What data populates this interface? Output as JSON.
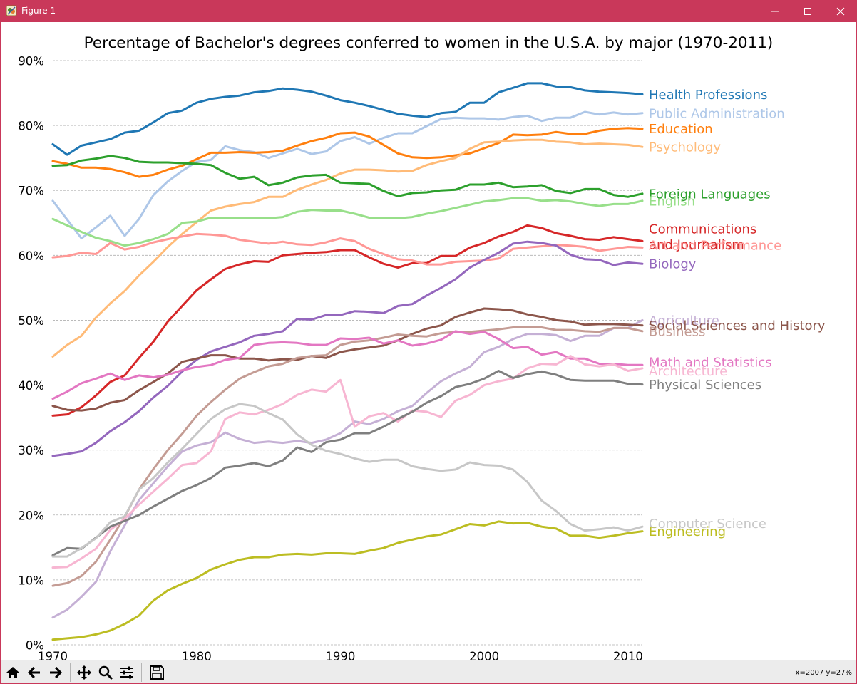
{
  "window": {
    "title": "Figure 1",
    "icons": [
      "app-icon",
      "minimize-icon",
      "maximize-icon",
      "close-icon"
    ],
    "title_bar_color": "#c9385a"
  },
  "toolbar": {
    "buttons": [
      "home-icon",
      "back-icon",
      "forward-icon",
      "pan-icon",
      "zoom-icon",
      "subplots-icon",
      "save-icon"
    ],
    "coords": "x=2007 y=27%"
  },
  "chart_data": {
    "type": "line",
    "title": "Percentage of Bachelor's degrees conferred to women in the U.S.A. by major (1970-2011)",
    "xlabel": "",
    "ylabel": "",
    "xlim": [
      1970,
      2011
    ],
    "ylim": [
      0,
      90
    ],
    "xticks": [
      "1970",
      "1980",
      "1990",
      "2000",
      "2010"
    ],
    "yticks": [
      "0%",
      "10%",
      "20%",
      "30%",
      "40%",
      "50%",
      "60%",
      "70%",
      "80%",
      "90%"
    ],
    "grid": "horizontal dashed",
    "legend": "direct labels at right end",
    "x": [
      1970,
      1971,
      1972,
      1973,
      1974,
      1975,
      1976,
      1977,
      1978,
      1979,
      1980,
      1981,
      1982,
      1983,
      1984,
      1985,
      1986,
      1987,
      1988,
      1989,
      1990,
      1991,
      1992,
      1993,
      1994,
      1995,
      1996,
      1997,
      1998,
      1999,
      2000,
      2001,
      2002,
      2003,
      2004,
      2005,
      2006,
      2007,
      2008,
      2009,
      2010,
      2011
    ],
    "series": [
      {
        "name": "Health Professions",
        "color": "#1f77b4",
        "values": [
          77.1,
          75.5,
          76.9,
          77.4,
          77.9,
          78.9,
          79.2,
          80.5,
          81.9,
          82.3,
          83.5,
          84.1,
          84.4,
          84.6,
          85.1,
          85.3,
          85.7,
          85.5,
          85.2,
          84.6,
          83.9,
          83.5,
          83.0,
          82.4,
          81.8,
          81.5,
          81.3,
          81.9,
          82.1,
          83.5,
          83.5,
          85.1,
          85.8,
          86.5,
          86.5,
          86.0,
          85.9,
          85.4,
          85.2,
          85.1,
          85.0,
          84.8
        ],
        "label_offset": 0
      },
      {
        "name": "Public Administration",
        "color": "#aec7e8",
        "values": [
          68.4,
          65.5,
          62.6,
          64.3,
          66.1,
          63.0,
          65.6,
          69.3,
          71.4,
          73.0,
          74.4,
          74.7,
          76.8,
          76.2,
          75.9,
          75.0,
          75.7,
          76.4,
          75.6,
          76.0,
          77.6,
          78.2,
          77.2,
          78.1,
          78.8,
          78.8,
          79.9,
          81.0,
          81.2,
          81.1,
          81.1,
          80.9,
          81.3,
          81.5,
          80.7,
          81.2,
          81.2,
          82.1,
          81.7,
          82.0,
          81.7,
          81.9
        ],
        "label_offset": 0
      },
      {
        "name": "Education",
        "color": "#ff7f0e",
        "values": [
          74.5,
          74.1,
          73.5,
          73.5,
          73.3,
          72.8,
          72.1,
          72.4,
          73.2,
          73.8,
          74.8,
          75.8,
          75.8,
          75.9,
          75.8,
          75.9,
          76.1,
          76.9,
          77.6,
          78.1,
          78.8,
          78.9,
          78.3,
          77.0,
          75.7,
          75.1,
          75.0,
          75.1,
          75.4,
          75.7,
          76.5,
          77.3,
          78.6,
          78.5,
          78.6,
          79.0,
          78.7,
          78.7,
          79.2,
          79.5,
          79.6,
          79.5
        ],
        "label_offset": 0
      },
      {
        "name": "Psychology",
        "color": "#ffbb78",
        "values": [
          44.4,
          46.2,
          47.6,
          50.4,
          52.6,
          54.5,
          56.9,
          59.0,
          61.3,
          63.3,
          65.1,
          66.9,
          67.5,
          67.9,
          68.2,
          69.0,
          69.0,
          70.1,
          70.9,
          71.6,
          72.6,
          73.2,
          73.2,
          73.1,
          72.9,
          73.0,
          73.9,
          74.5,
          75.0,
          76.4,
          77.4,
          77.5,
          77.7,
          77.8,
          77.8,
          77.5,
          77.4,
          77.1,
          77.2,
          77.1,
          77.0,
          76.7
        ],
        "label_offset": 0
      },
      {
        "name": "Foreign Languages",
        "color": "#2ca02c",
        "values": [
          73.8,
          73.9,
          74.6,
          74.9,
          75.3,
          75.0,
          74.4,
          74.3,
          74.3,
          74.2,
          74.1,
          73.9,
          72.7,
          71.8,
          72.1,
          70.8,
          71.2,
          72.0,
          72.3,
          72.4,
          71.2,
          71.1,
          71.0,
          69.9,
          69.1,
          69.6,
          69.7,
          70.0,
          70.1,
          70.9,
          70.9,
          71.2,
          70.5,
          70.6,
          70.8,
          69.9,
          69.6,
          70.2,
          70.2,
          69.3,
          69.0,
          69.5
        ],
        "label_offset": 0
      },
      {
        "name": "English",
        "color": "#98df8a",
        "values": [
          65.6,
          64.6,
          63.6,
          62.7,
          62.2,
          61.5,
          61.9,
          62.5,
          63.3,
          65.0,
          65.2,
          65.8,
          65.8,
          65.8,
          65.7,
          65.7,
          65.9,
          66.7,
          67.0,
          66.9,
          66.9,
          66.4,
          65.8,
          65.8,
          65.7,
          65.9,
          66.4,
          66.8,
          67.3,
          67.8,
          68.3,
          68.5,
          68.8,
          68.8,
          68.4,
          68.5,
          68.3,
          67.9,
          67.6,
          67.9,
          67.9,
          68.4
        ],
        "label_offset": 0
      },
      {
        "name": "Communications\nand Journalism",
        "color": "#d62728",
        "values": [
          35.3,
          35.5,
          36.6,
          38.4,
          40.5,
          41.5,
          44.2,
          46.7,
          49.8,
          52.2,
          54.6,
          56.3,
          57.9,
          58.6,
          59.1,
          59.0,
          60.0,
          60.2,
          60.4,
          60.5,
          60.8,
          60.8,
          59.7,
          58.7,
          58.1,
          58.8,
          58.8,
          59.9,
          59.9,
          61.2,
          61.9,
          62.9,
          63.6,
          64.6,
          64.2,
          63.4,
          63.0,
          62.5,
          62.4,
          62.8,
          62.5,
          62.2
        ],
        "label_offset": -0.5
      },
      {
        "name": "Art and Performance",
        "color": "#ff9896",
        "values": [
          59.7,
          59.9,
          60.4,
          60.2,
          61.9,
          60.9,
          61.3,
          62.0,
          62.5,
          62.9,
          63.3,
          63.2,
          63.0,
          62.4,
          62.1,
          61.8,
          62.1,
          61.7,
          61.6,
          62.0,
          62.6,
          62.2,
          61.0,
          60.2,
          59.4,
          59.2,
          58.6,
          58.6,
          59.0,
          59.1,
          59.2,
          59.5,
          61.0,
          61.2,
          61.4,
          61.6,
          61.5,
          61.3,
          60.7,
          61.0,
          61.3,
          61.2
        ],
        "label_offset": 0.4
      },
      {
        "name": "Biology",
        "color": "#9467bd",
        "values": [
          29.1,
          29.4,
          29.8,
          31.1,
          32.9,
          34.3,
          36.0,
          38.1,
          39.9,
          42.1,
          43.9,
          45.2,
          45.9,
          46.6,
          47.6,
          47.9,
          48.3,
          50.2,
          50.1,
          50.8,
          50.8,
          51.4,
          51.3,
          51.1,
          52.2,
          52.5,
          53.8,
          55.0,
          56.3,
          58.1,
          59.3,
          60.4,
          61.8,
          62.1,
          61.9,
          61.5,
          60.1,
          59.4,
          59.3,
          58.5,
          58.9,
          58.7
        ],
        "label_offset": 0
      },
      {
        "name": "Agriculture",
        "color": "#c5b0d5",
        "values": [
          4.2,
          5.4,
          7.4,
          9.7,
          14.4,
          18.4,
          22.3,
          24.9,
          27.5,
          29.8,
          30.7,
          31.2,
          32.7,
          31.7,
          31.1,
          31.3,
          31.1,
          31.4,
          31.1,
          31.6,
          32.6,
          34.4,
          34.0,
          34.8,
          36.0,
          36.8,
          38.8,
          40.6,
          41.8,
          42.8,
          45.1,
          45.9,
          47.1,
          47.9,
          47.9,
          47.7,
          46.8,
          47.6,
          47.6,
          48.8,
          48.8,
          50.0
        ],
        "label_offset": 0
      },
      {
        "name": "Social Sciences and History",
        "color": "#8c564b",
        "values": [
          36.8,
          36.2,
          36.1,
          36.4,
          37.3,
          37.7,
          39.2,
          40.5,
          41.8,
          43.6,
          44.1,
          44.6,
          44.6,
          44.1,
          44.1,
          43.8,
          44.0,
          43.9,
          44.5,
          44.2,
          45.1,
          45.5,
          45.8,
          46.1,
          46.9,
          47.9,
          48.7,
          49.2,
          50.5,
          51.2,
          51.8,
          51.7,
          51.5,
          50.9,
          50.5,
          50.0,
          49.8,
          49.3,
          49.4,
          49.4,
          49.3,
          49.2
        ],
        "label_offset": 0
      },
      {
        "name": "Business",
        "color": "#c49c94",
        "values": [
          9.1,
          9.5,
          10.6,
          12.8,
          16.2,
          19.7,
          23.9,
          27.1,
          30.0,
          32.5,
          35.3,
          37.4,
          39.3,
          41.0,
          42.0,
          42.9,
          43.3,
          44.2,
          44.5,
          44.6,
          46.2,
          46.7,
          46.9,
          47.3,
          47.8,
          47.6,
          47.5,
          48.0,
          48.2,
          48.2,
          48.4,
          48.6,
          48.9,
          49.0,
          48.9,
          48.5,
          48.5,
          48.3,
          48.2,
          48.8,
          48.8,
          48.3
        ],
        "label_offset": 0
      },
      {
        "name": "Math and Statistics",
        "color": "#e377c2",
        "values": [
          37.9,
          39.0,
          40.3,
          41.0,
          41.8,
          40.8,
          41.5,
          41.2,
          41.6,
          42.3,
          42.8,
          43.1,
          43.9,
          44.2,
          46.2,
          46.5,
          46.6,
          46.5,
          46.2,
          46.2,
          47.2,
          47.1,
          47.3,
          46.4,
          46.9,
          46.1,
          46.4,
          47.0,
          48.3,
          47.9,
          48.2,
          47.1,
          45.7,
          45.9,
          44.7,
          45.1,
          44.1,
          44.1,
          43.3,
          43.3,
          43.1,
          43.1
        ],
        "label_offset": 0.5
      },
      {
        "name": "Architecture",
        "color": "#f7b6d2",
        "values": [
          11.9,
          12.0,
          13.3,
          14.8,
          17.7,
          19.4,
          21.6,
          23.6,
          25.6,
          27.7,
          28.0,
          29.8,
          34.8,
          35.8,
          35.5,
          36.2,
          37.1,
          38.5,
          39.3,
          39.0,
          40.8,
          33.6,
          35.2,
          35.7,
          34.4,
          36.1,
          35.9,
          35.1,
          37.6,
          38.5,
          40.0,
          40.6,
          41.0,
          42.6,
          43.3,
          43.2,
          44.5,
          43.2,
          42.9,
          43.2,
          42.2,
          42.6
        ],
        "label_offset": -0.4
      },
      {
        "name": "Physical Sciences",
        "color": "#7f7f7f",
        "values": [
          13.8,
          14.9,
          14.8,
          16.5,
          18.2,
          19.1,
          20.0,
          21.3,
          22.5,
          23.7,
          24.6,
          25.7,
          27.3,
          27.6,
          28.0,
          27.5,
          28.4,
          30.4,
          29.7,
          31.2,
          31.6,
          32.6,
          32.6,
          33.6,
          34.8,
          35.9,
          37.3,
          38.3,
          39.7,
          40.2,
          41.0,
          42.2,
          41.1,
          41.7,
          42.1,
          41.6,
          40.8,
          40.7,
          40.7,
          40.7,
          40.2,
          40.1
        ],
        "label_offset": 0
      },
      {
        "name": "Computer Science",
        "color": "#c7c7c7",
        "values": [
          13.6,
          13.6,
          14.9,
          16.4,
          18.9,
          19.8,
          23.9,
          25.7,
          28.1,
          30.2,
          32.5,
          34.8,
          36.3,
          37.1,
          36.8,
          35.7,
          34.7,
          32.4,
          30.8,
          29.9,
          29.4,
          28.7,
          28.2,
          28.5,
          28.5,
          27.5,
          27.1,
          26.8,
          27.0,
          28.1,
          27.7,
          27.6,
          27.0,
          25.1,
          22.2,
          20.6,
          18.6,
          17.6,
          17.8,
          18.1,
          17.6,
          18.2
        ],
        "label_offset": 0.5
      },
      {
        "name": "Engineering",
        "color": "#bcbd22",
        "values": [
          0.8,
          1.0,
          1.2,
          1.6,
          2.2,
          3.2,
          4.5,
          6.8,
          8.4,
          9.4,
          10.3,
          11.6,
          12.4,
          13.1,
          13.5,
          13.5,
          13.9,
          14.0,
          13.9,
          14.1,
          14.1,
          14.0,
          14.5,
          14.9,
          15.7,
          16.2,
          16.7,
          17.0,
          17.8,
          18.6,
          18.4,
          19.0,
          18.7,
          18.8,
          18.2,
          17.9,
          16.8,
          16.8,
          16.5,
          16.8,
          17.2,
          17.5
        ],
        "label_offset": 0
      }
    ]
  }
}
